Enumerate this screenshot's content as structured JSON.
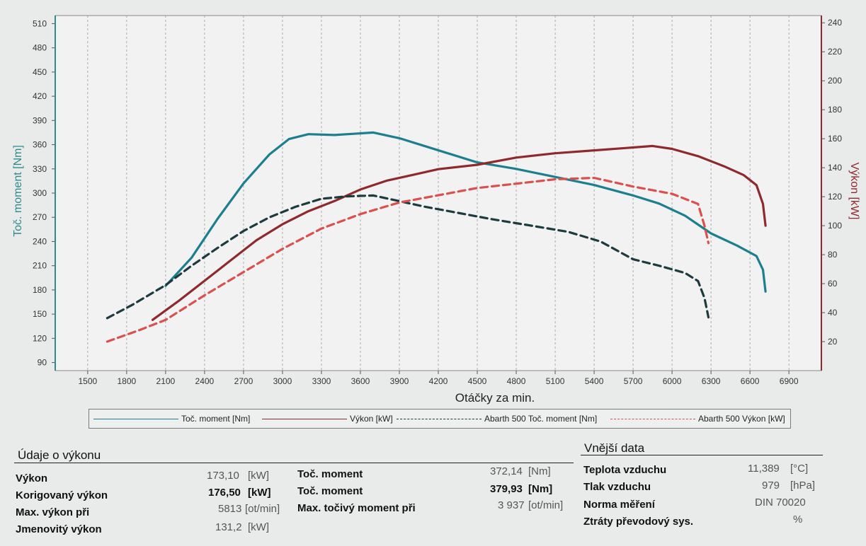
{
  "chart_data": {
    "type": "line",
    "x_label": "Otáčky za min.",
    "y_left_label": "Toč. moment [Nm]",
    "y_right_label": "Výkon [kW]",
    "x_range": [
      1250,
      7150
    ],
    "y_left_range": [
      80,
      520
    ],
    "y_right_range": [
      0,
      245
    ],
    "x_ticks": [
      1500,
      1800,
      2100,
      2400,
      2700,
      3000,
      3300,
      3600,
      3900,
      4200,
      4500,
      4800,
      5100,
      5400,
      5700,
      6000,
      6300,
      6600,
      6900
    ],
    "y_left_ticks": [
      90,
      120,
      150,
      180,
      210,
      240,
      270,
      300,
      330,
      360,
      390,
      420,
      450,
      480,
      510
    ],
    "y_right_ticks": [
      20,
      40,
      60,
      80,
      100,
      120,
      140,
      160,
      180,
      200,
      220,
      240
    ],
    "colors": {
      "torque": "#1d7f8e",
      "power": "#8e2a2e",
      "ref_torque": "#1d3a3f",
      "ref_power": "#d9504f",
      "axis_left": "#2f8a8a",
      "axis_right": "#8e2a2e"
    },
    "series": [
      {
        "name": "Toč. moment [Nm]",
        "key": "torque",
        "axis": "left",
        "style": "solid",
        "points": [
          [
            2100,
            185
          ],
          [
            2300,
            220
          ],
          [
            2500,
            268
          ],
          [
            2700,
            312
          ],
          [
            2900,
            348
          ],
          [
            3050,
            367
          ],
          [
            3200,
            373
          ],
          [
            3400,
            372
          ],
          [
            3700,
            375
          ],
          [
            3900,
            368
          ],
          [
            4100,
            358
          ],
          [
            4300,
            348
          ],
          [
            4500,
            338
          ],
          [
            4800,
            330
          ],
          [
            5100,
            320
          ],
          [
            5400,
            310
          ],
          [
            5700,
            297
          ],
          [
            5900,
            287
          ],
          [
            6100,
            272
          ],
          [
            6300,
            250
          ],
          [
            6500,
            235
          ],
          [
            6650,
            222
          ],
          [
            6700,
            205
          ],
          [
            6720,
            178
          ]
        ]
      },
      {
        "name": "Výkon [kW]",
        "key": "power",
        "axis": "right",
        "style": "solid",
        "points": [
          [
            2000,
            35
          ],
          [
            2200,
            48
          ],
          [
            2400,
            62
          ],
          [
            2600,
            76
          ],
          [
            2800,
            90
          ],
          [
            3000,
            101
          ],
          [
            3200,
            110
          ],
          [
            3400,
            117
          ],
          [
            3600,
            125
          ],
          [
            3800,
            131
          ],
          [
            4000,
            135
          ],
          [
            4200,
            139
          ],
          [
            4500,
            142
          ],
          [
            4800,
            147
          ],
          [
            5100,
            150
          ],
          [
            5400,
            152
          ],
          [
            5700,
            154
          ],
          [
            5850,
            155
          ],
          [
            6000,
            153
          ],
          [
            6200,
            148
          ],
          [
            6400,
            141
          ],
          [
            6550,
            135
          ],
          [
            6650,
            128
          ],
          [
            6700,
            115
          ],
          [
            6720,
            100
          ]
        ]
      },
      {
        "name": "Abarth 500 Toč. moment [Nm]",
        "key": "ref_torque",
        "axis": "left",
        "style": "dashed",
        "points": [
          [
            1650,
            145
          ],
          [
            1850,
            162
          ],
          [
            2100,
            186
          ],
          [
            2300,
            210
          ],
          [
            2500,
            232
          ],
          [
            2700,
            253
          ],
          [
            2900,
            270
          ],
          [
            3100,
            283
          ],
          [
            3300,
            293
          ],
          [
            3500,
            296
          ],
          [
            3700,
            297
          ],
          [
            3900,
            290
          ],
          [
            4100,
            283
          ],
          [
            4300,
            277
          ],
          [
            4600,
            268
          ],
          [
            4900,
            260
          ],
          [
            5200,
            252
          ],
          [
            5450,
            240
          ],
          [
            5700,
            218
          ],
          [
            5900,
            210
          ],
          [
            6100,
            201
          ],
          [
            6200,
            191
          ],
          [
            6250,
            170
          ],
          [
            6280,
            146
          ]
        ]
      },
      {
        "name": "Abarth 500 Výkon [kW]",
        "key": "ref_power",
        "axis": "right",
        "style": "dashed",
        "points": [
          [
            1650,
            20
          ],
          [
            1900,
            28
          ],
          [
            2100,
            35
          ],
          [
            2400,
            52
          ],
          [
            2700,
            68
          ],
          [
            3000,
            84
          ],
          [
            3300,
            98
          ],
          [
            3600,
            108
          ],
          [
            3900,
            116
          ],
          [
            4200,
            121
          ],
          [
            4500,
            126
          ],
          [
            4800,
            129
          ],
          [
            5100,
            132
          ],
          [
            5400,
            133
          ],
          [
            5700,
            127
          ],
          [
            6000,
            122
          ],
          [
            6200,
            115
          ],
          [
            6250,
            100
          ],
          [
            6280,
            88
          ]
        ]
      }
    ]
  },
  "legend": {
    "torque": "Toč. moment [Nm]",
    "power": "Výkon [kW]",
    "ref_torque": "Abarth 500 Toč. moment [Nm]",
    "ref_power": "Abarth 500 Výkon [kW]"
  },
  "performance": {
    "title": "Údaje o výkonu",
    "rows": [
      {
        "label": "Výkon",
        "value": "173,10",
        "unit": "[kW]"
      },
      {
        "label": "Korigovaný výkon",
        "value": "176,50",
        "unit": "[kW]"
      },
      {
        "label": "Max. výkon při",
        "value": "5813",
        "unit": "[ot/min]"
      },
      {
        "label": "Jmenovitý výkon",
        "value": "131,2",
        "unit": "[kW]"
      }
    ],
    "torque_rows": [
      {
        "label": "Toč. moment",
        "value": "372,14",
        "unit": "[Nm]"
      },
      {
        "label": "Toč. moment",
        "value": "379,93",
        "unit": "[Nm]"
      },
      {
        "label": "Max. točivý moment při",
        "value": "3 937",
        "unit": "[ot/min]"
      }
    ]
  },
  "external": {
    "title": "Vnější data",
    "rows": [
      {
        "label": "Teplota vzduchu",
        "value": "11,389",
        "unit": "[°C]"
      },
      {
        "label": "Tlak vzduchu",
        "value": "979",
        "unit": "[hPa]"
      },
      {
        "label": "Norma měření",
        "value": "DIN 70020",
        "unit": ""
      },
      {
        "label": "Ztráty převodový sys.",
        "value": "",
        "unit": "%"
      }
    ]
  }
}
